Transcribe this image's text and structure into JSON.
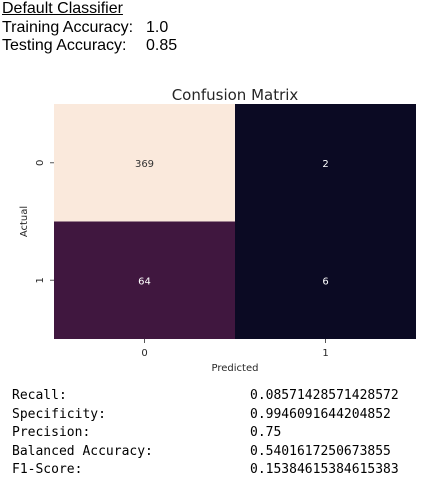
{
  "header": {
    "title": "Default Classifier",
    "training_label": "Training Accuracy:",
    "training_value": "1.0",
    "testing_label": "Testing Accuracy:",
    "testing_value": "0.85"
  },
  "chart_data": {
    "type": "heatmap",
    "title": "Confusion Matrix",
    "xlabel": "Predicted",
    "ylabel": "Actual",
    "x_categories": [
      "0",
      "1"
    ],
    "y_categories": [
      "0",
      "1"
    ],
    "values": [
      [
        369,
        2
      ],
      [
        64,
        6
      ]
    ],
    "cell_colors": [
      [
        "#fae9dc",
        "#0b0a23"
      ],
      [
        "#40173f",
        "#0b0a23"
      ]
    ],
    "annotation_colors": [
      [
        "#333333",
        "#ffffff"
      ],
      [
        "#ffffff",
        "#ffffff"
      ]
    ],
    "colorbar": false
  },
  "metrics": [
    {
      "label": "Recall:",
      "value": "0.08571428571428572"
    },
    {
      "label": "Specificity:",
      "value": "0.9946091644204852"
    },
    {
      "label": "Precision:",
      "value": "0.75"
    },
    {
      "label": "Balanced Accuracy:",
      "value": "0.5401617250673855"
    },
    {
      "label": "F1-Score:",
      "value": "0.15384615384615383"
    }
  ]
}
